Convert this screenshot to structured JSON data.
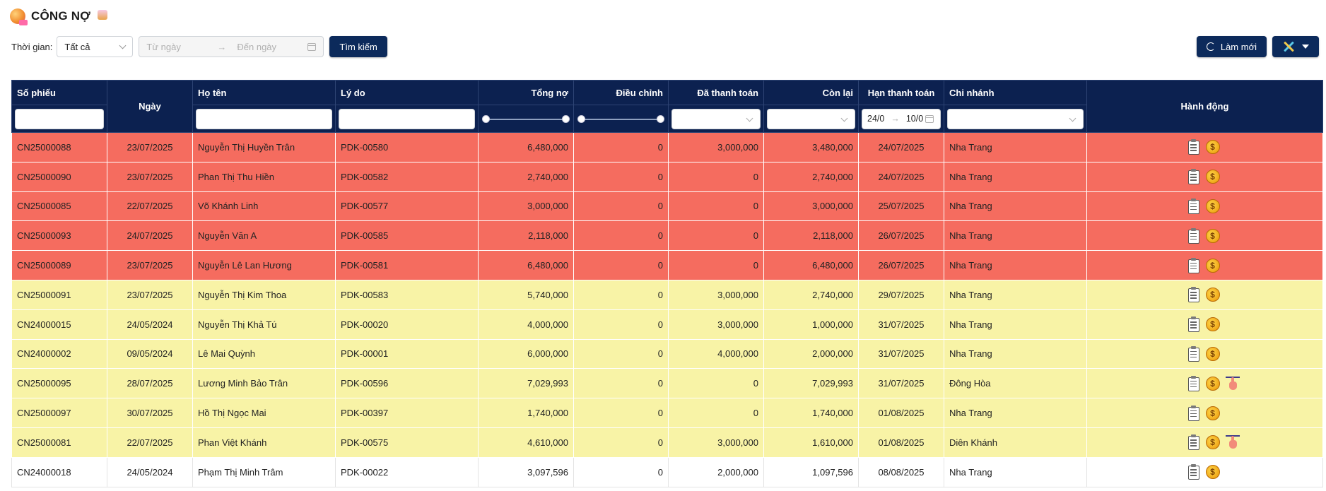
{
  "page": {
    "title": "CÔNG NỢ"
  },
  "filters": {
    "time_label": "Thời gian:",
    "time_value": "Tất cả",
    "from_placeholder": "Từ ngày",
    "to_placeholder": "Đến ngày",
    "range_arrow": "→",
    "search_button": "Tìm kiếm"
  },
  "toolbar": {
    "refresh_label": "Làm mới"
  },
  "table": {
    "headers": {
      "code": "Số phiếu",
      "date": "Ngày",
      "name": "Họ tên",
      "reason": "Lý do",
      "total": "Tổng nợ",
      "adjust": "Điều chỉnh",
      "paid": "Đã thanh toán",
      "remaining": "Còn lại",
      "due": "Hạn thanh toán",
      "branch": "Chi nhánh",
      "actions": "Hành động"
    },
    "due_filter": {
      "from": "24/0",
      "arrow": "→",
      "to": "10/0"
    },
    "rows": [
      {
        "code": "CN25000088",
        "date": "23/07/2025",
        "name": "Nguyễn Thị Huyền Trân",
        "reason": "PDK-00580",
        "total": "6,480,000",
        "adjust": "0",
        "paid": "3,000,000",
        "remaining": "3,480,000",
        "due": "24/07/2025",
        "branch": "Nha Trang",
        "status": "overdue",
        "has_hand": false
      },
      {
        "code": "CN25000090",
        "date": "23/07/2025",
        "name": "Phan Thị Thu Hiền",
        "reason": "PDK-00582",
        "total": "2,740,000",
        "adjust": "0",
        "paid": "0",
        "remaining": "2,740,000",
        "due": "24/07/2025",
        "branch": "Nha Trang",
        "status": "overdue",
        "has_hand": false
      },
      {
        "code": "CN25000085",
        "date": "22/07/2025",
        "name": "Võ Khánh Linh",
        "reason": "PDK-00577",
        "total": "3,000,000",
        "adjust": "0",
        "paid": "0",
        "remaining": "3,000,000",
        "due": "25/07/2025",
        "branch": "Nha Trang",
        "status": "overdue",
        "has_hand": false
      },
      {
        "code": "CN25000093",
        "date": "24/07/2025",
        "name": "Nguyễn Văn A",
        "reason": "PDK-00585",
        "total": "2,118,000",
        "adjust": "0",
        "paid": "0",
        "remaining": "2,118,000",
        "due": "26/07/2025",
        "branch": "Nha Trang",
        "status": "overdue",
        "has_hand": false
      },
      {
        "code": "CN25000089",
        "date": "23/07/2025",
        "name": "Nguyễn Lê Lan Hương",
        "reason": "PDK-00581",
        "total": "6,480,000",
        "adjust": "0",
        "paid": "0",
        "remaining": "6,480,000",
        "due": "26/07/2025",
        "branch": "Nha Trang",
        "status": "overdue",
        "has_hand": false
      },
      {
        "code": "CN25000091",
        "date": "23/07/2025",
        "name": "Nguyễn Thị Kim Thoa",
        "reason": "PDK-00583",
        "total": "5,740,000",
        "adjust": "0",
        "paid": "3,000,000",
        "remaining": "2,740,000",
        "due": "29/07/2025",
        "branch": "Nha Trang",
        "status": "warning",
        "has_hand": false
      },
      {
        "code": "CN24000015",
        "date": "24/05/2024",
        "name": "Nguyễn Thị Khả Tú",
        "reason": "PDK-00020",
        "total": "4,000,000",
        "adjust": "0",
        "paid": "3,000,000",
        "remaining": "1,000,000",
        "due": "31/07/2025",
        "branch": "Nha Trang",
        "status": "warning",
        "has_hand": false
      },
      {
        "code": "CN24000002",
        "date": "09/05/2024",
        "name": "Lê Mai Quỳnh",
        "reason": "PDK-00001",
        "total": "6,000,000",
        "adjust": "0",
        "paid": "4,000,000",
        "remaining": "2,000,000",
        "due": "31/07/2025",
        "branch": "Nha Trang",
        "status": "warning",
        "has_hand": false
      },
      {
        "code": "CN25000095",
        "date": "28/07/2025",
        "name": "Lương Minh Bảo Trân",
        "reason": "PDK-00596",
        "total": "7,029,993",
        "adjust": "0",
        "paid": "0",
        "remaining": "7,029,993",
        "due": "31/07/2025",
        "branch": "Đông Hòa",
        "status": "warning",
        "has_hand": true
      },
      {
        "code": "CN25000097",
        "date": "30/07/2025",
        "name": "Hồ Thị Ngọc Mai",
        "reason": "PDK-00397",
        "total": "1,740,000",
        "adjust": "0",
        "paid": "0",
        "remaining": "1,740,000",
        "due": "01/08/2025",
        "branch": "Nha Trang",
        "status": "warning",
        "has_hand": false
      },
      {
        "code": "CN25000081",
        "date": "22/07/2025",
        "name": "Phan Việt Khánh",
        "reason": "PDK-00575",
        "total": "4,610,000",
        "adjust": "0",
        "paid": "3,000,000",
        "remaining": "1,610,000",
        "due": "01/08/2025",
        "branch": "Diên Khánh",
        "status": "warning",
        "has_hand": true
      },
      {
        "code": "CN24000018",
        "date": "24/05/2024",
        "name": "Phạm Thị Minh Trâm",
        "reason": "PDK-00022",
        "total": "3,097,596",
        "adjust": "0",
        "paid": "2,000,000",
        "remaining": "1,097,596",
        "due": "08/08/2025",
        "branch": "Nha Trang",
        "status": "normal",
        "has_hand": false
      }
    ]
  },
  "colors": {
    "header_bg": "#0c2150",
    "overdue_row": "#f56c5f",
    "warning_row": "#f8f3a6",
    "normal_row": "#ffffff",
    "primary_button": "#0c2a5b"
  },
  "icons": {
    "title": "debt-logo-icon",
    "detail": "clipboard-icon",
    "payment": "coin-icon",
    "remind": "hand-point-icon",
    "refresh": "refresh-icon",
    "tools": "tools-icon",
    "calendar": "calendar-icon"
  }
}
